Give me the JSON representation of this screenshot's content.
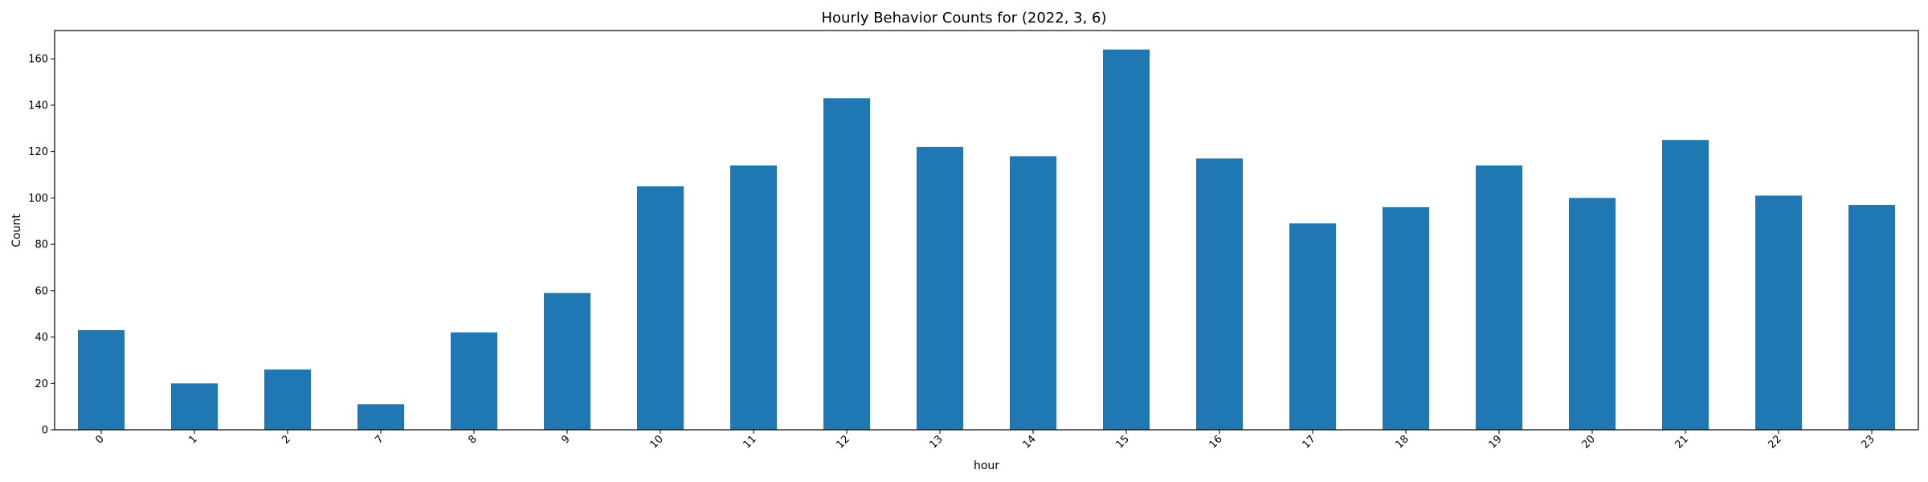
{
  "chart_data": {
    "type": "bar",
    "title": "Hourly Behavior Counts for (2022, 3, 6)",
    "xlabel": "hour",
    "ylabel": "Count",
    "categories": [
      "0",
      "1",
      "2",
      "7",
      "8",
      "9",
      "10",
      "11",
      "12",
      "13",
      "14",
      "15",
      "16",
      "17",
      "18",
      "19",
      "20",
      "21",
      "22",
      "23"
    ],
    "values": [
      43,
      20,
      26,
      11,
      42,
      59,
      105,
      114,
      143,
      122,
      118,
      164,
      117,
      89,
      96,
      114,
      100,
      125,
      101,
      97
    ],
    "ylim": [
      0,
      172.2
    ],
    "yticks": [
      0,
      20,
      40,
      60,
      80,
      100,
      120,
      140,
      160
    ],
    "bar_color": "#1f77b4",
    "grid": false,
    "legend": "none"
  }
}
